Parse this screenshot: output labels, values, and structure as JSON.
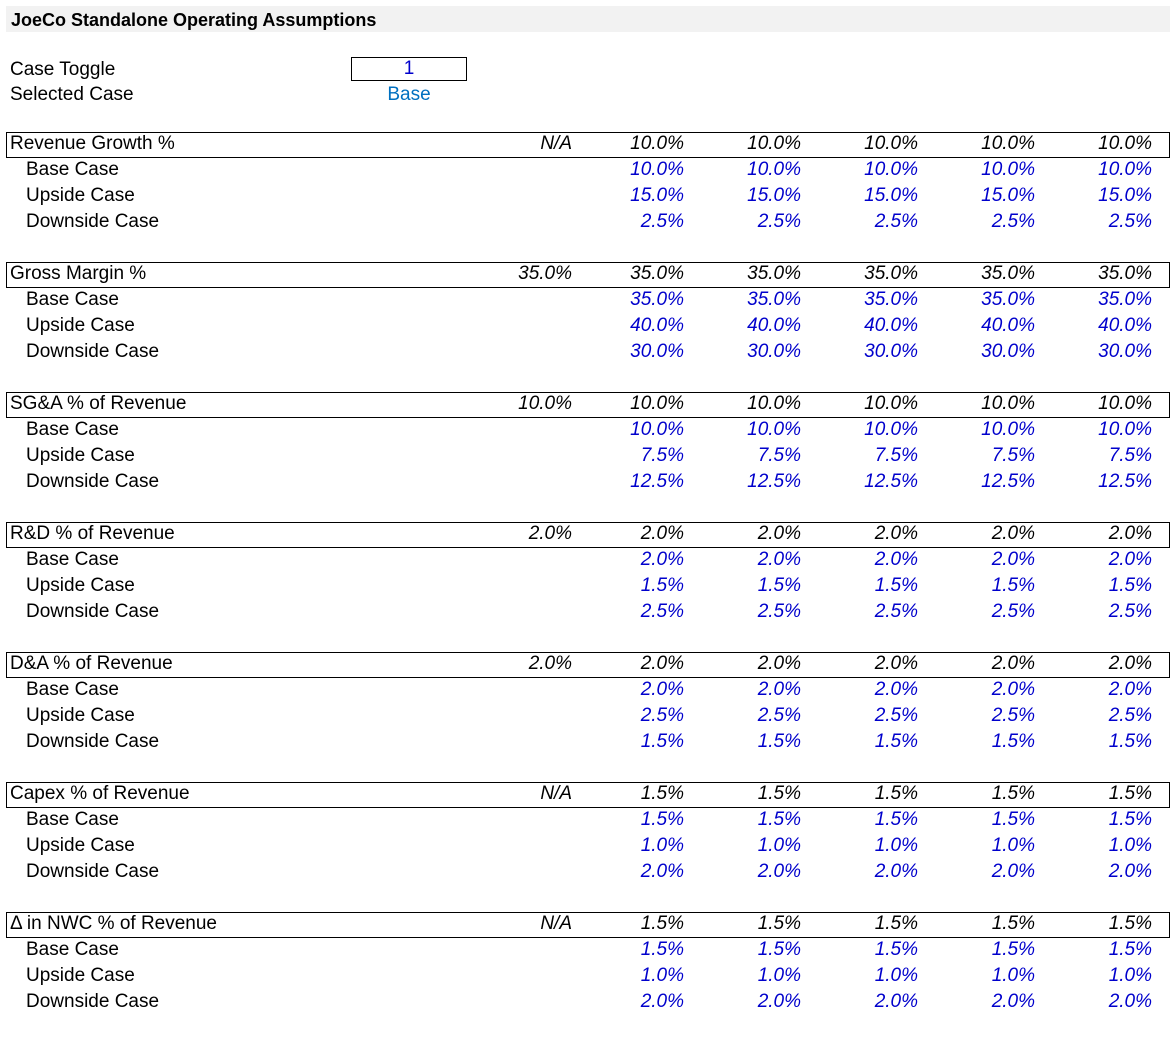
{
  "title": "JoeCo Standalone Operating Assumptions",
  "controls": {
    "case_toggle_label": "Case Toggle",
    "case_toggle_value": "1",
    "selected_case_label": "Selected Case",
    "selected_case_value": "Base"
  },
  "case_labels": [
    "Base Case",
    "Upside Case",
    "Downside Case"
  ],
  "sections": [
    {
      "label": "Revenue Growth %",
      "historical": "N/A",
      "selected": [
        "10.0%",
        "10.0%",
        "10.0%",
        "10.0%",
        "10.0%"
      ],
      "cases": [
        [
          "10.0%",
          "10.0%",
          "10.0%",
          "10.0%",
          "10.0%"
        ],
        [
          "15.0%",
          "15.0%",
          "15.0%",
          "15.0%",
          "15.0%"
        ],
        [
          "2.5%",
          "2.5%",
          "2.5%",
          "2.5%",
          "2.5%"
        ]
      ]
    },
    {
      "label": "Gross Margin %",
      "historical": "35.0%",
      "selected": [
        "35.0%",
        "35.0%",
        "35.0%",
        "35.0%",
        "35.0%"
      ],
      "cases": [
        [
          "35.0%",
          "35.0%",
          "35.0%",
          "35.0%",
          "35.0%"
        ],
        [
          "40.0%",
          "40.0%",
          "40.0%",
          "40.0%",
          "40.0%"
        ],
        [
          "30.0%",
          "30.0%",
          "30.0%",
          "30.0%",
          "30.0%"
        ]
      ]
    },
    {
      "label": "SG&A % of Revenue",
      "historical": "10.0%",
      "selected": [
        "10.0%",
        "10.0%",
        "10.0%",
        "10.0%",
        "10.0%"
      ],
      "cases": [
        [
          "10.0%",
          "10.0%",
          "10.0%",
          "10.0%",
          "10.0%"
        ],
        [
          "7.5%",
          "7.5%",
          "7.5%",
          "7.5%",
          "7.5%"
        ],
        [
          "12.5%",
          "12.5%",
          "12.5%",
          "12.5%",
          "12.5%"
        ]
      ]
    },
    {
      "label": "R&D % of Revenue",
      "historical": "2.0%",
      "selected": [
        "2.0%",
        "2.0%",
        "2.0%",
        "2.0%",
        "2.0%"
      ],
      "cases": [
        [
          "2.0%",
          "2.0%",
          "2.0%",
          "2.0%",
          "2.0%"
        ],
        [
          "1.5%",
          "1.5%",
          "1.5%",
          "1.5%",
          "1.5%"
        ],
        [
          "2.5%",
          "2.5%",
          "2.5%",
          "2.5%",
          "2.5%"
        ]
      ]
    },
    {
      "label": "D&A % of Revenue",
      "historical": "2.0%",
      "selected": [
        "2.0%",
        "2.0%",
        "2.0%",
        "2.0%",
        "2.0%"
      ],
      "cases": [
        [
          "2.0%",
          "2.0%",
          "2.0%",
          "2.0%",
          "2.0%"
        ],
        [
          "2.5%",
          "2.5%",
          "2.5%",
          "2.5%",
          "2.5%"
        ],
        [
          "1.5%",
          "1.5%",
          "1.5%",
          "1.5%",
          "1.5%"
        ]
      ]
    },
    {
      "label": "Capex % of Revenue",
      "historical": "N/A",
      "selected": [
        "1.5%",
        "1.5%",
        "1.5%",
        "1.5%",
        "1.5%"
      ],
      "cases": [
        [
          "1.5%",
          "1.5%",
          "1.5%",
          "1.5%",
          "1.5%"
        ],
        [
          "1.0%",
          "1.0%",
          "1.0%",
          "1.0%",
          "1.0%"
        ],
        [
          "2.0%",
          "2.0%",
          "2.0%",
          "2.0%",
          "2.0%"
        ]
      ]
    },
    {
      "label": "Δ in NWC % of Revenue",
      "historical": "N/A",
      "selected": [
        "1.5%",
        "1.5%",
        "1.5%",
        "1.5%",
        "1.5%"
      ],
      "cases": [
        [
          "1.5%",
          "1.5%",
          "1.5%",
          "1.5%",
          "1.5%"
        ],
        [
          "1.0%",
          "1.0%",
          "1.0%",
          "1.0%",
          "1.0%"
        ],
        [
          "2.0%",
          "2.0%",
          "2.0%",
          "2.0%",
          "2.0%"
        ]
      ]
    }
  ]
}
